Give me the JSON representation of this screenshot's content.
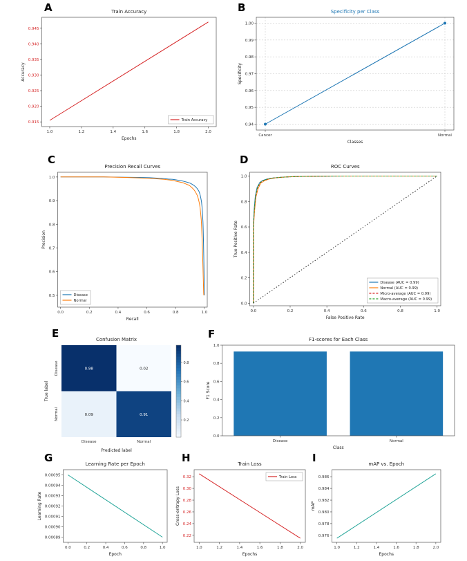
{
  "chart_data": [
    {
      "panel": "A",
      "type": "line",
      "title": "Train Accuracy",
      "xlabel": "Epochs",
      "ylabel": "Accuracy",
      "xlim": [
        0.95,
        2.05
      ],
      "ylim": [
        0.9135,
        0.9485
      ],
      "xticks": [
        "1.0",
        "1.2",
        "1.4",
        "1.6",
        "1.8",
        "2.0"
      ],
      "yticks": [
        "0.915",
        "0.920",
        "0.925",
        "0.930",
        "0.935",
        "0.940",
        "0.945"
      ],
      "ytick_color": "#d62728",
      "series": [
        {
          "name": "Train Accuracy",
          "color": "#d62728",
          "points": [
            [
              1.0,
              0.9155
            ],
            [
              2.0,
              0.947
            ]
          ]
        }
      ],
      "legend": {
        "position": "lower-right"
      }
    },
    {
      "panel": "B",
      "type": "line",
      "title": "Specificity per Class",
      "title_color": "#1f77b4",
      "xlabel": "Classes",
      "ylabel": "Specificity",
      "x_categories": [
        "Cancer",
        "Normal"
      ],
      "xlim": [
        -0.05,
        1.05
      ],
      "ylim": [
        0.9365,
        1.0035
      ],
      "yticks": [
        "0.94",
        "0.95",
        "0.96",
        "0.97",
        "0.98",
        "0.99",
        "1.00"
      ],
      "grid": "dashed",
      "series": [
        {
          "name": "Specificity",
          "color": "#1f77b4",
          "marker": true,
          "points": [
            [
              0,
              0.94
            ],
            [
              1,
              1.0
            ]
          ]
        }
      ]
    },
    {
      "panel": "C",
      "type": "line",
      "title": "Precision Recall Curves",
      "xlabel": "Recall",
      "ylabel": "Precision",
      "xlim": [
        -0.02,
        1.02
      ],
      "ylim": [
        0.45,
        1.02
      ],
      "xticks": [
        "0.0",
        "0.2",
        "0.4",
        "0.6",
        "0.8",
        "1.0"
      ],
      "yticks": [
        "0.5",
        "0.6",
        "0.7",
        "0.8",
        "0.9",
        "1.0"
      ],
      "series": [
        {
          "name": "Disease",
          "color": "#1f77b4",
          "points": [
            [
              0.0,
              1.0
            ],
            [
              0.3,
              1.0
            ],
            [
              0.45,
              0.999
            ],
            [
              0.55,
              0.998
            ],
            [
              0.62,
              0.997
            ],
            [
              0.68,
              0.995
            ],
            [
              0.72,
              0.993
            ],
            [
              0.75,
              0.991
            ],
            [
              0.78,
              0.99
            ],
            [
              0.8,
              0.988
            ],
            [
              0.82,
              0.986
            ],
            [
              0.84,
              0.984
            ],
            [
              0.86,
              0.981
            ],
            [
              0.88,
              0.978
            ],
            [
              0.9,
              0.974
            ],
            [
              0.91,
              0.971
            ],
            [
              0.92,
              0.967
            ],
            [
              0.93,
              0.963
            ],
            [
              0.94,
              0.958
            ],
            [
              0.95,
              0.951
            ],
            [
              0.96,
              0.942
            ],
            [
              0.965,
              0.935
            ],
            [
              0.97,
              0.925
            ],
            [
              0.975,
              0.912
            ],
            [
              0.98,
              0.895
            ],
            [
              0.984,
              0.872
            ],
            [
              0.987,
              0.845
            ],
            [
              0.99,
              0.81
            ],
            [
              0.992,
              0.77
            ],
            [
              0.994,
              0.72
            ],
            [
              0.996,
              0.66
            ],
            [
              0.998,
              0.59
            ],
            [
              1.0,
              0.5
            ]
          ]
        },
        {
          "name": "Normal",
          "color": "#ff7f0e",
          "points": [
            [
              0.0,
              1.0
            ],
            [
              0.3,
              1.0
            ],
            [
              0.45,
              0.998
            ],
            [
              0.55,
              0.996
            ],
            [
              0.62,
              0.994
            ],
            [
              0.68,
              0.992
            ],
            [
              0.72,
              0.99
            ],
            [
              0.76,
              0.987
            ],
            [
              0.79,
              0.984
            ],
            [
              0.82,
              0.98
            ],
            [
              0.85,
              0.976
            ],
            [
              0.87,
              0.971
            ],
            [
              0.89,
              0.966
            ],
            [
              0.9,
              0.962
            ],
            [
              0.91,
              0.957
            ],
            [
              0.92,
              0.951
            ],
            [
              0.93,
              0.944
            ],
            [
              0.94,
              0.935
            ],
            [
              0.95,
              0.923
            ],
            [
              0.955,
              0.914
            ],
            [
              0.96,
              0.903
            ],
            [
              0.965,
              0.889
            ],
            [
              0.97,
              0.871
            ],
            [
              0.974,
              0.848
            ],
            [
              0.978,
              0.82
            ],
            [
              0.981,
              0.785
            ],
            [
              0.984,
              0.74
            ],
            [
              0.987,
              0.685
            ],
            [
              0.99,
              0.62
            ],
            [
              0.993,
              0.555
            ],
            [
              0.995,
              0.51
            ],
            [
              0.996,
              0.5
            ]
          ]
        }
      ],
      "legend": {
        "position": "lower-left"
      }
    },
    {
      "panel": "D",
      "type": "line",
      "title": "ROC Curves",
      "xlabel": "False Positive Rate",
      "ylabel": "True Positive Rate",
      "xlim": [
        -0.02,
        1.02
      ],
      "ylim": [
        -0.02,
        1.03
      ],
      "xticks": [
        "0.0",
        "0.2",
        "0.4",
        "0.6",
        "0.8",
        "1.0"
      ],
      "yticks": [
        "0.0",
        "0.2",
        "0.4",
        "0.6",
        "0.8",
        "1.0"
      ],
      "series": [
        {
          "name": "Disease (AUC = 0.99)",
          "color": "#1f77b4",
          "points": [
            [
              0,
              0
            ],
            [
              0,
              0.62
            ],
            [
              0.004,
              0.74
            ],
            [
              0.01,
              0.84
            ],
            [
              0.02,
              0.91
            ],
            [
              0.035,
              0.95
            ],
            [
              0.05,
              0.965
            ],
            [
              0.07,
              0.975
            ],
            [
              0.1,
              0.984
            ],
            [
              0.15,
              0.991
            ],
            [
              0.22,
              0.996
            ],
            [
              0.35,
              0.999
            ],
            [
              0.5,
              1
            ],
            [
              1,
              1
            ]
          ]
        },
        {
          "name": "Normal (AUC = 0.99)",
          "color": "#ff7f0e",
          "points": [
            [
              0,
              0
            ],
            [
              0,
              0.58
            ],
            [
              0.006,
              0.72
            ],
            [
              0.013,
              0.83
            ],
            [
              0.025,
              0.9
            ],
            [
              0.04,
              0.945
            ],
            [
              0.06,
              0.963
            ],
            [
              0.085,
              0.976
            ],
            [
              0.12,
              0.986
            ],
            [
              0.18,
              0.993
            ],
            [
              0.27,
              0.998
            ],
            [
              0.4,
              1
            ],
            [
              1,
              1
            ]
          ]
        },
        {
          "name": "Micro-average (AUC = 0.99)",
          "color": "#d62728",
          "dash": "3,2",
          "points": [
            [
              0,
              0
            ],
            [
              0,
              0.6
            ],
            [
              0.005,
              0.73
            ],
            [
              0.012,
              0.835
            ],
            [
              0.022,
              0.905
            ],
            [
              0.038,
              0.948
            ],
            [
              0.055,
              0.964
            ],
            [
              0.078,
              0.9755
            ],
            [
              0.11,
              0.985
            ],
            [
              0.165,
              0.992
            ],
            [
              0.245,
              0.997
            ],
            [
              0.37,
              0.9995
            ],
            [
              0.5,
              1
            ],
            [
              1,
              1
            ]
          ]
        },
        {
          "name": "Macro-average (AUC = 0.99)",
          "color": "#2ca02c",
          "dash": "3,2",
          "points": [
            [
              0,
              0
            ],
            [
              0,
              0.6
            ],
            [
              0.005,
              0.735
            ],
            [
              0.011,
              0.838
            ],
            [
              0.021,
              0.908
            ],
            [
              0.036,
              0.949
            ],
            [
              0.053,
              0.9645
            ],
            [
              0.075,
              0.976
            ],
            [
              0.105,
              0.9845
            ],
            [
              0.16,
              0.9915
            ],
            [
              0.24,
              0.9965
            ],
            [
              0.36,
              0.9993
            ],
            [
              0.5,
              1
            ],
            [
              1,
              1
            ]
          ]
        },
        {
          "name": "",
          "color": "#333333",
          "dash": "1.5,2.5",
          "no_legend": true,
          "points": [
            [
              0,
              0
            ],
            [
              1,
              1
            ]
          ]
        }
      ],
      "legend": {
        "position": "lower-right"
      }
    },
    {
      "panel": "E",
      "type": "heatmap",
      "title": "Confusion Matrix",
      "xlabel": "Predicted label",
      "ylabel": "True label",
      "x_categories": [
        "Disease",
        "Normal"
      ],
      "y_categories": [
        "Disease",
        "Normal"
      ],
      "matrix": [
        [
          0.98,
          0.02
        ],
        [
          0.09,
          0.91
        ]
      ],
      "colorbar_ticks": [
        "0.2",
        "0.4",
        "0.6",
        "0.8"
      ],
      "colormap": "Blues"
    },
    {
      "panel": "F",
      "type": "bar",
      "title": "F1-scores for Each Class",
      "xlabel": "Class",
      "ylabel": "F1 Score",
      "x_categories": [
        "Disease",
        "Normal"
      ],
      "values": [
        0.93,
        0.93
      ],
      "bar_color": "#1f77b4",
      "ylim": [
        0,
        1.0
      ],
      "yticks": [
        "0.0",
        "0.2",
        "0.4",
        "0.6",
        "0.8",
        "1.0"
      ]
    },
    {
      "panel": "G",
      "type": "line",
      "title": "Learning Rate per Epoch",
      "xlabel": "Epoch",
      "ylabel": "Learning Rate",
      "xlim": [
        -0.05,
        1.05
      ],
      "ylim": [
        0.000885,
        0.000955
      ],
      "xticks": [
        "0.0",
        "0.2",
        "0.4",
        "0.6",
        "0.8",
        "1.0"
      ],
      "yticks": [
        "0.00089",
        "0.00090",
        "0.00091",
        "0.00092",
        "0.00093",
        "0.00094",
        "0.00095"
      ],
      "series": [
        {
          "name": "Learning Rate",
          "color": "#26a69a",
          "points": [
            [
              0,
              0.00095
            ],
            [
              1,
              0.00089
            ]
          ]
        }
      ]
    },
    {
      "panel": "H",
      "type": "line",
      "title": "Train Loss",
      "xlabel": "Epochs",
      "ylabel": "Cross-entropy Loss",
      "xlim": [
        0.95,
        2.05
      ],
      "ylim": [
        0.208,
        0.332
      ],
      "xticks": [
        "1.0",
        "1.2",
        "1.4",
        "1.6",
        "1.8",
        "2.0"
      ],
      "yticks": [
        "0.22",
        "0.24",
        "0.26",
        "0.28",
        "0.30",
        "0.32"
      ],
      "ytick_color": "#d62728",
      "series": [
        {
          "name": "Train Loss",
          "color": "#d62728",
          "points": [
            [
              1.0,
              0.325
            ],
            [
              2.0,
              0.215
            ]
          ]
        }
      ],
      "legend": {
        "position": "upper-right"
      }
    },
    {
      "panel": "I",
      "type": "line",
      "title": "mAP vs. Epoch",
      "xlabel": "Epochs",
      "ylabel": "mAP",
      "xlim": [
        0.95,
        2.05
      ],
      "ylim": [
        0.9748,
        0.9872
      ],
      "xticks": [
        "1.0",
        "1.2",
        "1.4",
        "1.6",
        "1.8",
        "2.0"
      ],
      "yticks": [
        "0.976",
        "0.978",
        "0.980",
        "0.982",
        "0.984",
        "0.986"
      ],
      "series": [
        {
          "name": "mAP",
          "color": "#26a69a",
          "points": [
            [
              1.0,
              0.9755
            ],
            [
              2.0,
              0.9865
            ]
          ]
        }
      ]
    }
  ]
}
